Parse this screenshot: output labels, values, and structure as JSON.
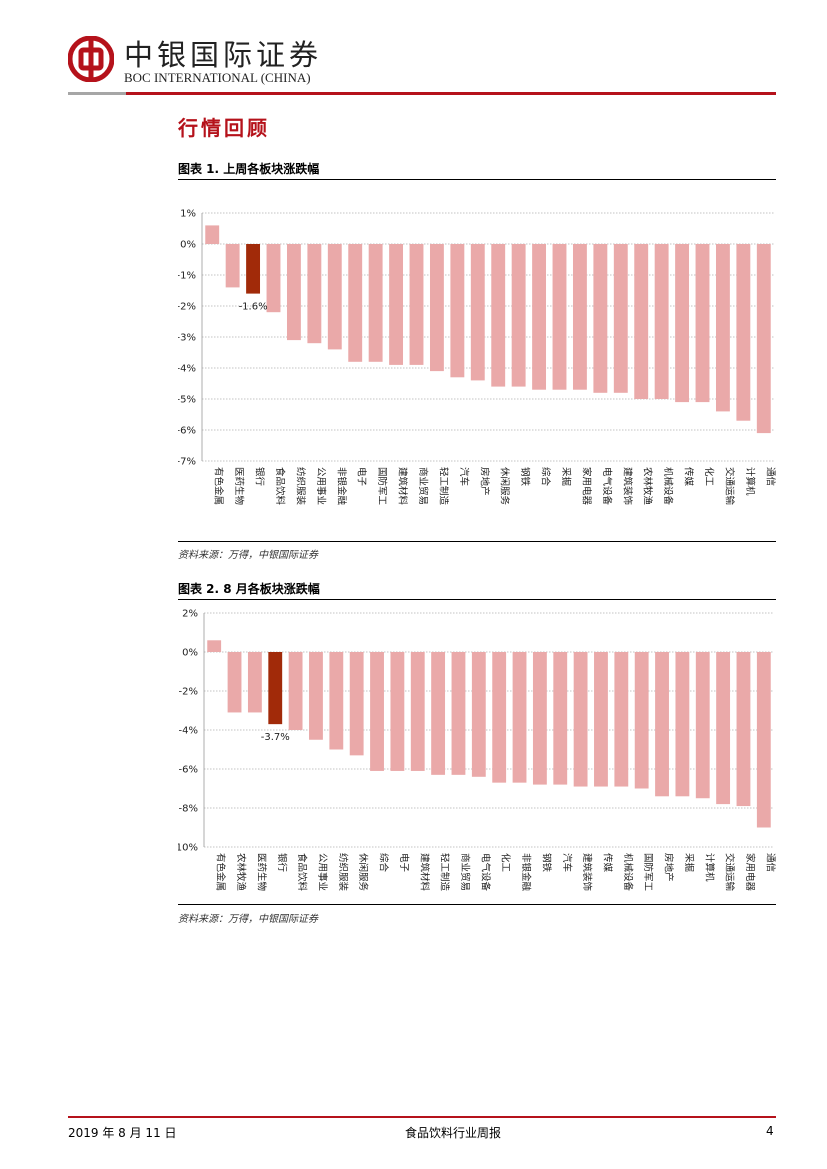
{
  "header": {
    "brand_cn": "中银国际证券",
    "brand_en": "BOC INTERNATIONAL (CHINA)",
    "logo_icon": "boc-logo-icon",
    "brand_color": "#b5121b"
  },
  "section_title": "行情回顾",
  "figure1": {
    "title": "图表 1. 上周各板块涨跌幅",
    "source": "资料来源：万得，中银国际证券"
  },
  "figure2": {
    "title": "图表 2. 8 月各板块涨跌幅",
    "source": "资料来源：万得，中银国际证券"
  },
  "chart_data": [
    {
      "type": "bar",
      "title": "",
      "xlabel": "",
      "ylabel": "",
      "ylim": [
        -7,
        1
      ],
      "yticks": [
        1,
        0,
        -1,
        -2,
        -3,
        -4,
        -5,
        -6,
        -7
      ],
      "grid": true,
      "unit": "%",
      "bar_color": "#eaa9a9",
      "highlight_color": "#a12a09",
      "highlight_index": 2,
      "highlight_label": "-1.6%",
      "categories": [
        "有色金属",
        "医药生物",
        "银行",
        "食品饮料",
        "纺织服装",
        "公用事业",
        "非银金融",
        "电子",
        "国防军工",
        "建筑材料",
        "商业贸易",
        "轻工制造",
        "汽车",
        "房地产",
        "休闲服务",
        "钢铁",
        "综合",
        "采掘",
        "家用电器",
        "电气设备",
        "建筑装饰",
        "农林牧渔",
        "机械设备",
        "传媒",
        "化工",
        "交通运输",
        "计算机",
        "通信"
      ],
      "values": [
        0.6,
        -1.4,
        -1.6,
        -2.2,
        -3.1,
        -3.2,
        -3.4,
        -3.8,
        -3.8,
        -3.9,
        -3.9,
        -4.1,
        -4.3,
        -4.4,
        -4.6,
        -4.6,
        -4.7,
        -4.7,
        -4.7,
        -4.8,
        -4.8,
        -5.0,
        -5.0,
        -5.1,
        -5.1,
        -5.4,
        -5.7,
        -6.1
      ]
    },
    {
      "type": "bar",
      "title": "",
      "xlabel": "",
      "ylabel": "",
      "ylim": [
        -10,
        2
      ],
      "yticks": [
        2,
        0,
        -2,
        -4,
        -6,
        -8,
        -10
      ],
      "grid": true,
      "unit": "%",
      "bar_color": "#eaa9a9",
      "highlight_color": "#a12a09",
      "highlight_index": 3,
      "highlight_label": "-3.7%",
      "categories": [
        "有色金属",
        "农林牧渔",
        "医药生物",
        "银行",
        "食品饮料",
        "公用事业",
        "纺织服装",
        "休闲服务",
        "综合",
        "电子",
        "建筑材料",
        "轻工制造",
        "商业贸易",
        "电气设备",
        "化工",
        "非银金融",
        "钢铁",
        "汽车",
        "建筑装饰",
        "传媒",
        "机械设备",
        "国防军工",
        "房地产",
        "采掘",
        "计算机",
        "交通运输",
        "家用电器",
        "通信"
      ],
      "values": [
        0.6,
        -3.1,
        -3.1,
        -3.7,
        -4.0,
        -4.5,
        -5.0,
        -5.3,
        -6.1,
        -6.1,
        -6.1,
        -6.3,
        -6.3,
        -6.4,
        -6.7,
        -6.7,
        -6.8,
        -6.8,
        -6.9,
        -6.9,
        -6.9,
        -7.0,
        -7.4,
        -7.4,
        -7.5,
        -7.8,
        -7.9,
        -9.0
      ]
    }
  ],
  "footer": {
    "date": "2019 年 8 月 11 日",
    "report_name": "食品饮料行业周报",
    "page_number": "4"
  }
}
